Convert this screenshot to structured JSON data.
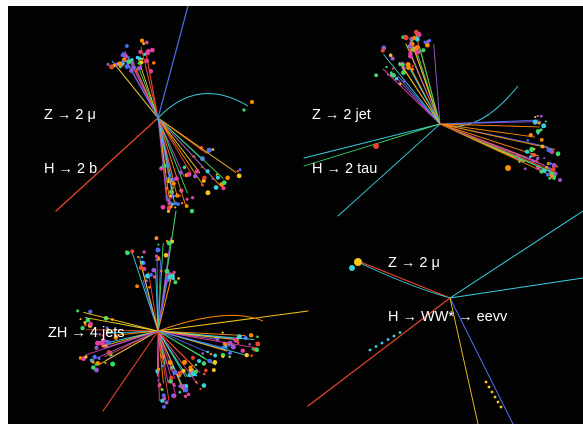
{
  "panels": [
    {
      "id": "top-left",
      "lines": [
        "Z → 2 μ",
        "H → 2 b"
      ]
    },
    {
      "id": "top-right",
      "lines": [
        "Z → 2 jet",
        "H → 2 tau"
      ]
    },
    {
      "id": "bottom-right",
      "lines": [
        "Z → 2 μ",
        "H → WW* → eevv"
      ]
    },
    {
      "id": "bottom-left",
      "lines": [
        "ZH → 4 jets"
      ]
    }
  ],
  "colors": {
    "background": "#020202",
    "track_palette": [
      "#e8452a",
      "#f5c518",
      "#3ad0e0",
      "#4c6ef5",
      "#9b59d0",
      "#3ddc6a",
      "#ff8a00",
      "#e040a0"
    ]
  }
}
